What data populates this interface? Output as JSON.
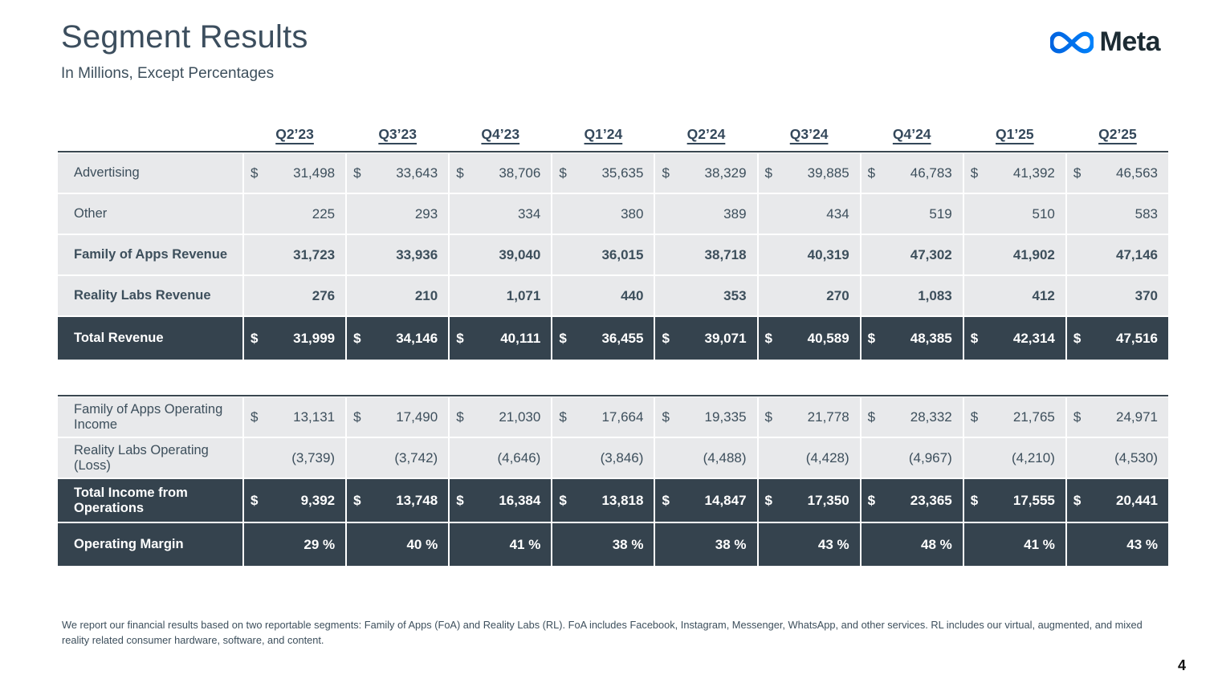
{
  "slide": {
    "title": "Segment Results",
    "subtitle": "In Millions, Except Percentages",
    "page_number": "4",
    "footnote": "We report our financial results based on two reportable segments: Family of Apps (FoA) and Reality Labs (RL). FoA includes Facebook, Instagram, Messenger, WhatsApp, and other services. RL includes our virtual, augmented, and mixed reality related consumer hardware, software, and content."
  },
  "logo": {
    "wordmark": "Meta",
    "icon": "meta-infinity-icon",
    "gradient_start": "#0064E0",
    "gradient_end": "#0082FB",
    "wordmark_color": "#1C2B33"
  },
  "columns": [
    "Q2’23",
    "Q3’23",
    "Q4’23",
    "Q1’24",
    "Q2’24",
    "Q3’24",
    "Q4’24",
    "Q1’25",
    "Q2’25"
  ],
  "tables": [
    {
      "name": "revenue",
      "rows": [
        {
          "label": "Advertising",
          "dollar": true,
          "bold": false,
          "dark": false,
          "values": [
            "31,498",
            "33,643",
            "38,706",
            "35,635",
            "38,329",
            "39,885",
            "46,783",
            "41,392",
            "46,563"
          ]
        },
        {
          "label": "Other",
          "dollar": false,
          "bold": false,
          "dark": false,
          "values": [
            "225",
            "293",
            "334",
            "380",
            "389",
            "434",
            "519",
            "510",
            "583"
          ]
        },
        {
          "label": "Family of Apps Revenue",
          "dollar": false,
          "bold": true,
          "dark": false,
          "values": [
            "31,723",
            "33,936",
            "39,040",
            "36,015",
            "38,718",
            "40,319",
            "47,302",
            "41,902",
            "47,146"
          ]
        },
        {
          "label": "Reality Labs Revenue",
          "dollar": false,
          "bold": true,
          "dark": false,
          "values": [
            "276",
            "210",
            "1,071",
            "440",
            "353",
            "270",
            "1,083",
            "412",
            "370"
          ]
        },
        {
          "label": "Total Revenue",
          "dollar": true,
          "bold": true,
          "dark": true,
          "values": [
            "31,999",
            "34,146",
            "40,111",
            "36,455",
            "39,071",
            "40,589",
            "48,385",
            "42,314",
            "47,516"
          ]
        }
      ]
    },
    {
      "name": "operating-income",
      "rows": [
        {
          "label": "Family of Apps Operating Income",
          "dollar": true,
          "bold": false,
          "dark": false,
          "values": [
            "13,131",
            "17,490",
            "21,030",
            "17,664",
            "19,335",
            "21,778",
            "28,332",
            "21,765",
            "24,971"
          ]
        },
        {
          "label": "Reality Labs Operating (Loss)",
          "dollar": false,
          "bold": false,
          "dark": false,
          "values": [
            "(3,739)",
            "(3,742)",
            "(4,646)",
            "(3,846)",
            "(4,488)",
            "(4,428)",
            "(4,967)",
            "(4,210)",
            "(4,530)"
          ]
        },
        {
          "label": "Total Income from Operations",
          "dollar": true,
          "bold": true,
          "dark": true,
          "values": [
            "9,392",
            "13,748",
            "16,384",
            "13,818",
            "14,847",
            "17,350",
            "23,365",
            "17,555",
            "20,441"
          ]
        },
        {
          "label": "Operating Margin",
          "dollar": false,
          "bold": true,
          "dark": true,
          "values": [
            "29 %",
            "40 %",
            "41 %",
            "38 %",
            "38 %",
            "43 %",
            "48 %",
            "41 %",
            "43 %"
          ]
        }
      ]
    }
  ],
  "colors": {
    "dark_row": "#35434E",
    "light_row": "#E8E9EB",
    "table_text": "#3D4F5C",
    "header_text": "#33475A"
  }
}
